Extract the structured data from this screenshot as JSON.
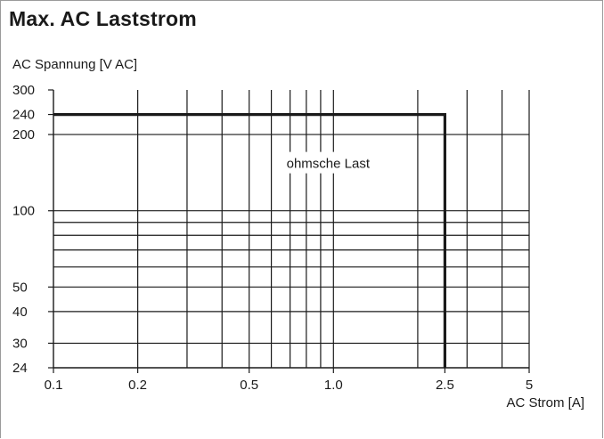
{
  "chart_data": {
    "type": "line",
    "title": "Max. AC Laststrom",
    "ylabel": "AC Spannung  [V AC]",
    "xlabel": "AC Strom [A]",
    "x_scale": "log",
    "y_scale": "log",
    "xlim": [
      0.1,
      5
    ],
    "ylim": [
      24,
      300
    ],
    "x_ticks": [
      {
        "value": 0.1,
        "label": "0.1"
      },
      {
        "value": 0.2,
        "label": "0.2"
      },
      {
        "value": 0.5,
        "label": "0.5"
      },
      {
        "value": 1.0,
        "label": "1.0"
      },
      {
        "value": 2.5,
        "label": "2.5"
      },
      {
        "value": 5,
        "label": "5"
      }
    ],
    "y_ticks": [
      {
        "value": 24,
        "label": "24"
      },
      {
        "value": 30,
        "label": "30"
      },
      {
        "value": 40,
        "label": "40"
      },
      {
        "value": 50,
        "label": "50"
      },
      {
        "value": 100,
        "label": "100"
      },
      {
        "value": 200,
        "label": "200"
      },
      {
        "value": 240,
        "label": "240"
      },
      {
        "value": 300,
        "label": "300"
      }
    ],
    "x_gridlines": [
      0.2,
      0.3,
      0.4,
      0.5,
      0.6,
      0.7,
      0.8,
      0.9,
      1.0,
      2,
      3,
      4
    ],
    "y_gridlines": [
      30,
      40,
      50,
      60,
      70,
      80,
      90,
      100,
      200
    ],
    "grid": true,
    "series": [
      {
        "points": [
          [
            0.1,
            240
          ],
          [
            2.5,
            240
          ],
          [
            2.5,
            24
          ]
        ]
      }
    ],
    "annotations": [
      {
        "text": "ohmsche Last",
        "x": 0.95,
        "y": 150
      }
    ],
    "colors": {
      "line": "#1a1a1a",
      "grid": "#1a1a1a"
    }
  }
}
